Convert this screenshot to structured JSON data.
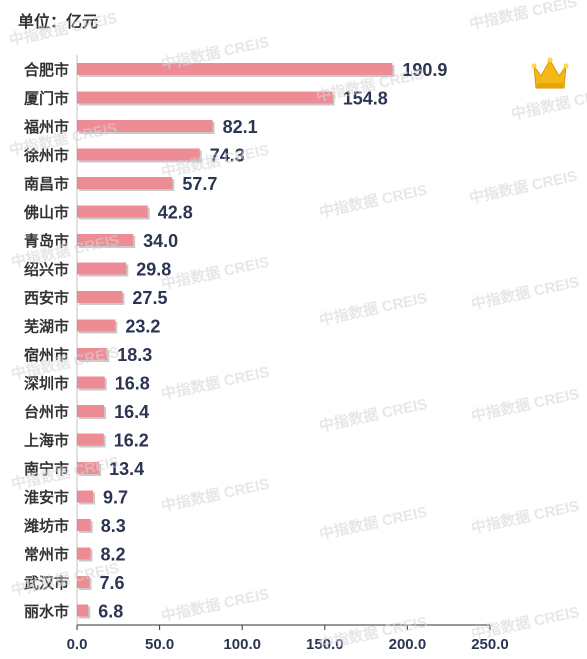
{
  "unit_label": "单位：亿元",
  "watermark": "中指数据 CREIS",
  "crown_icon": "crown-icon",
  "colors": {
    "bar": "#ee8c95",
    "bar_shadow": "#c9c9c9",
    "text": "#333333",
    "value": "#2b3552",
    "axis": "#333333"
  },
  "chart_data": {
    "type": "bar",
    "orientation": "horizontal",
    "categories": [
      "合肥市",
      "厦门市",
      "福州市",
      "徐州市",
      "南昌市",
      "佛山市",
      "青岛市",
      "绍兴市",
      "西安市",
      "芜湖市",
      "宿州市",
      "深圳市",
      "台州市",
      "上海市",
      "南宁市",
      "淮安市",
      "潍坊市",
      "常州市",
      "武汉市",
      "丽水市"
    ],
    "values": [
      190.9,
      154.8,
      82.1,
      74.3,
      57.7,
      42.8,
      34.0,
      29.8,
      27.5,
      23.2,
      18.3,
      16.8,
      16.4,
      16.2,
      13.4,
      9.7,
      8.3,
      8.2,
      7.6,
      6.8
    ],
    "value_labels": [
      "190.9",
      "154.8",
      "82.1",
      "74.3",
      "57.7",
      "42.8",
      "34.0",
      "29.8",
      "27.5",
      "23.2",
      "18.3",
      "16.8",
      "16.4",
      "16.2",
      "13.4",
      "9.7",
      "8.3",
      "8.2",
      "7.6",
      "6.8"
    ],
    "xticks": [
      "0.0",
      "50.0",
      "100.0",
      "150.0",
      "200.0",
      "250.0"
    ],
    "xlim": [
      0,
      250
    ],
    "grid": false,
    "legend": "none"
  }
}
